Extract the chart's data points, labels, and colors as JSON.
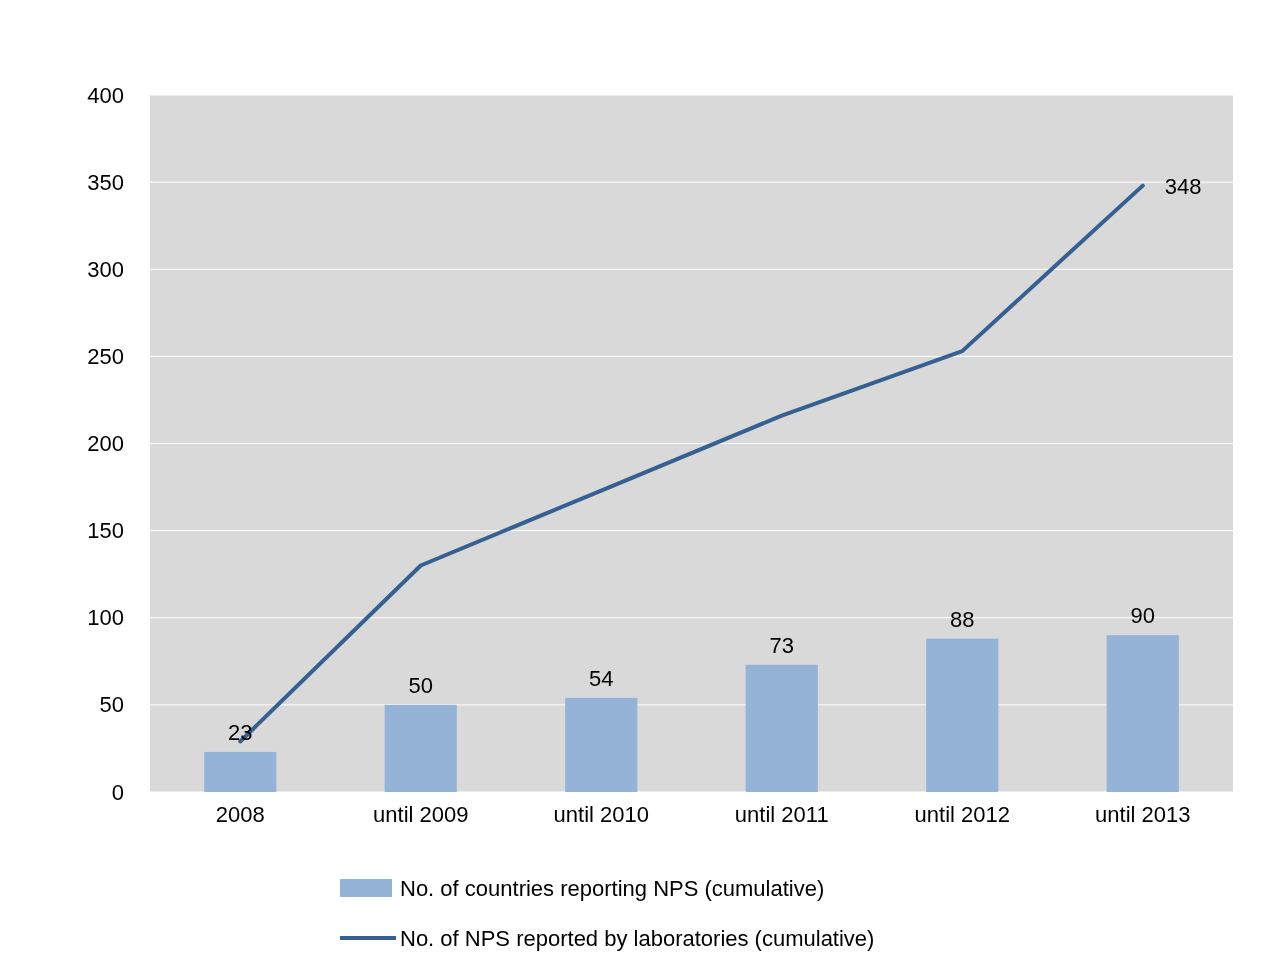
{
  "chart_data": {
    "type": "bar",
    "categories": [
      "2008",
      "until 2009",
      "until 2010",
      "until 2011",
      "until 2012",
      "until 2013"
    ],
    "series": [
      {
        "name": "No. of countries reporting NPS (cumulative)",
        "color": "#95b3d7",
        "values": [
          23,
          50,
          54,
          73,
          88,
          90
        ],
        "value_labels": [
          "23",
          "50",
          "54",
          "73",
          "88",
          "90"
        ]
      },
      {
        "name": "No. of NPS reported by laboratories (cumulative)",
        "type": "line",
        "color": "#376092",
        "values": [
          29,
          130,
          173,
          216,
          253,
          348
        ],
        "value_labels": [
          null,
          null,
          null,
          null,
          null,
          "348"
        ]
      }
    ],
    "ylim": [
      0,
      400
    ],
    "yticks": [
      0,
      50,
      100,
      150,
      200,
      250,
      300,
      350,
      400
    ],
    "grid": "y",
    "legend": "bottom",
    "marker": "none",
    "line_style": "solid"
  }
}
